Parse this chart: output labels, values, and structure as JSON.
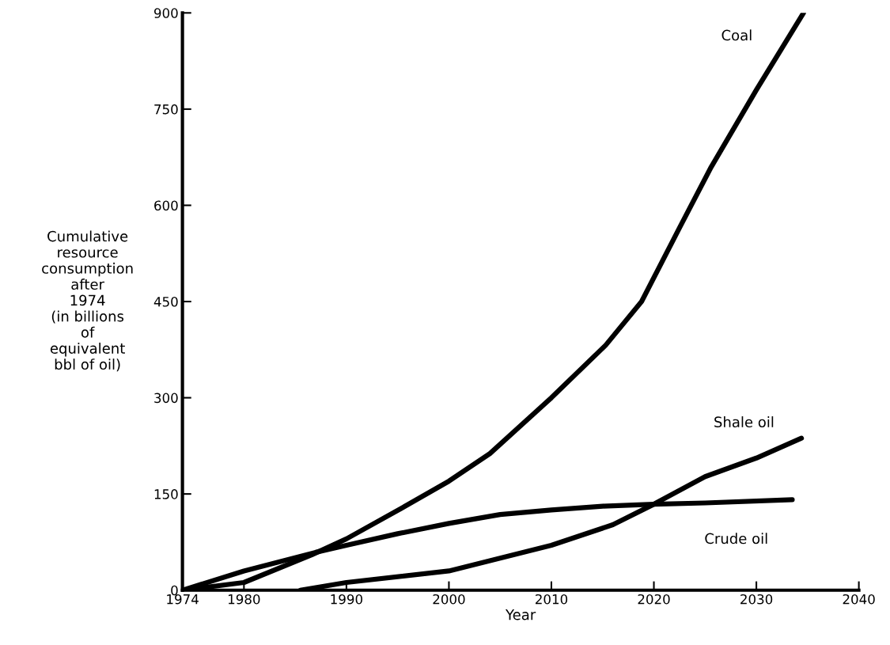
{
  "chart_data": {
    "type": "line",
    "xlabel": "Year",
    "ylabel": "Cumulative\nresource\nconsumption\nafter\n1974\n(in billions\nof\nequivalent\nbbl of oil)",
    "xlim": [
      1974,
      2040
    ],
    "xticks": [
      1974,
      1980,
      1990,
      2000,
      2010,
      2020,
      2030,
      2040
    ],
    "ylim": [
      0,
      900
    ],
    "yticks": [
      0,
      150,
      300,
      450,
      600,
      750,
      900
    ],
    "grid": false,
    "legend": false,
    "marker": "none",
    "line_style": "solid",
    "series": [
      {
        "name": "Coal",
        "color": "#000000",
        "x": [
          1974,
          1980,
          1986.6,
          1990,
          1995.3,
          2000,
          2004,
          2010,
          2015.3,
          2018.8,
          2022.5,
          2025.6,
          2030,
          2034.6
        ],
        "values": [
          0,
          12,
          55,
          80,
          127,
          170,
          213,
          300,
          382,
          450,
          565,
          660,
          780,
          900
        ]
      },
      {
        "name": "Shale oil",
        "color": "#000000",
        "x": [
          1985.5,
          1990,
          2000,
          2010,
          2016,
          2020,
          2025,
          2030,
          2034.4
        ],
        "values": [
          0,
          12,
          30,
          70,
          102,
          134,
          177,
          206,
          237
        ]
      },
      {
        "name": "Crude oil",
        "color": "#000000",
        "x": [
          1974,
          1980,
          1987,
          1990,
          1995,
          2000,
          2005,
          2010,
          2015,
          2020,
          2025,
          2033.5
        ],
        "values": [
          0,
          30,
          59,
          70,
          88,
          104,
          118,
          125,
          131,
          134,
          136,
          141
        ]
      }
    ]
  }
}
